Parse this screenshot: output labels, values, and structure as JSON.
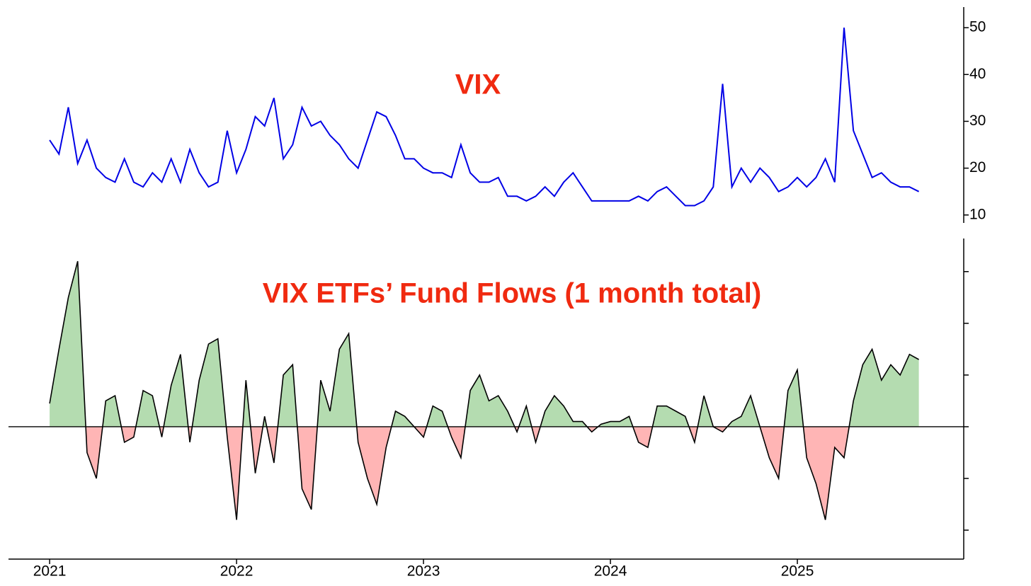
{
  "chart_data": [
    {
      "type": "line",
      "title": "VIX",
      "x": [
        2021.0,
        2021.05,
        2021.1,
        2021.15,
        2021.2,
        2021.25,
        2021.3,
        2021.35,
        2021.4,
        2021.45,
        2021.5,
        2021.55,
        2021.6,
        2021.65,
        2021.7,
        2021.75,
        2021.8,
        2021.85,
        2021.9,
        2021.95,
        2022.0,
        2022.05,
        2022.1,
        2022.15,
        2022.2,
        2022.25,
        2022.3,
        2022.35,
        2022.4,
        2022.45,
        2022.5,
        2022.55,
        2022.6,
        2022.65,
        2022.7,
        2022.75,
        2022.8,
        2022.85,
        2022.9,
        2022.95,
        2023.0,
        2023.05,
        2023.1,
        2023.15,
        2023.2,
        2023.25,
        2023.3,
        2023.35,
        2023.4,
        2023.45,
        2023.5,
        2023.55,
        2023.6,
        2023.65,
        2023.7,
        2023.75,
        2023.8,
        2023.85,
        2023.9,
        2023.95,
        2024.0,
        2024.05,
        2024.1,
        2024.15,
        2024.2,
        2024.25,
        2024.3,
        2024.35,
        2024.4,
        2024.45,
        2024.5,
        2024.55,
        2024.6,
        2024.65,
        2024.7,
        2024.75,
        2024.8,
        2024.85,
        2024.9,
        2024.95,
        2025.0,
        2025.05,
        2025.1,
        2025.15,
        2025.2,
        2025.25,
        2025.3,
        2025.35,
        2025.4,
        2025.45,
        2025.5,
        2025.55,
        2025.6,
        2025.65
      ],
      "series": [
        {
          "color": "#0000e6",
          "values": [
            26,
            23,
            33,
            21,
            26,
            20,
            18,
            17,
            22,
            17,
            16,
            19,
            17,
            22,
            17,
            24,
            19,
            16,
            17,
            28,
            19,
            24,
            31,
            29,
            35,
            22,
            25,
            33,
            29,
            30,
            27,
            25,
            22,
            20,
            26,
            32,
            31,
            27,
            22,
            22,
            20,
            19,
            19,
            18,
            25,
            19,
            17,
            17,
            18,
            14,
            14,
            13,
            14,
            16,
            14,
            17,
            19,
            16,
            13,
            13,
            13,
            13,
            13,
            14,
            13,
            15,
            16,
            14,
            12,
            12,
            13,
            16,
            38,
            16,
            20,
            17,
            20,
            18,
            15,
            16,
            18,
            16,
            18,
            22,
            17,
            50,
            28,
            23,
            18,
            19,
            17,
            16,
            16,
            15
          ]
        }
      ],
      "xlim": [
        2020.78,
        2025.89
      ],
      "ylim": [
        8.3,
        54.4
      ],
      "yticks": [
        10,
        20,
        30,
        40,
        50
      ]
    },
    {
      "type": "area",
      "title": "VIX ETFs’ Fund Flows (1 month total)",
      "x": [
        2021.0,
        2021.05,
        2021.1,
        2021.15,
        2021.2,
        2021.25,
        2021.3,
        2021.35,
        2021.4,
        2021.45,
        2021.5,
        2021.55,
        2021.6,
        2021.65,
        2021.7,
        2021.75,
        2021.8,
        2021.85,
        2021.9,
        2021.95,
        2022.0,
        2022.05,
        2022.1,
        2022.15,
        2022.2,
        2022.25,
        2022.3,
        2022.35,
        2022.4,
        2022.45,
        2022.5,
        2022.55,
        2022.6,
        2022.65,
        2022.7,
        2022.75,
        2022.8,
        2022.85,
        2022.9,
        2022.95,
        2023.0,
        2023.05,
        2023.1,
        2023.15,
        2023.2,
        2023.25,
        2023.3,
        2023.35,
        2023.4,
        2023.45,
        2023.5,
        2023.55,
        2023.6,
        2023.65,
        2023.7,
        2023.75,
        2023.8,
        2023.85,
        2023.9,
        2023.95,
        2024.0,
        2024.05,
        2024.1,
        2024.15,
        2024.2,
        2024.25,
        2024.3,
        2024.35,
        2024.4,
        2024.45,
        2024.5,
        2024.55,
        2024.6,
        2024.65,
        2024.7,
        2024.75,
        2024.8,
        2024.85,
        2024.9,
        2024.95,
        2025.0,
        2025.05,
        2025.1,
        2025.15,
        2025.2,
        2025.25,
        2025.3,
        2025.35,
        2025.4,
        2025.45,
        2025.5,
        2025.55,
        2025.6,
        2025.65
      ],
      "series": [
        {
          "color": "#000000",
          "values": [
            0.45,
            1.5,
            2.5,
            3.2,
            -0.5,
            -1.0,
            0.5,
            0.6,
            -0.3,
            -0.2,
            0.7,
            0.6,
            -0.2,
            0.8,
            1.4,
            -0.3,
            0.9,
            1.6,
            1.7,
            -0.2,
            -1.8,
            0.9,
            -0.9,
            0.2,
            -0.7,
            1.0,
            1.2,
            -1.2,
            -1.6,
            0.9,
            0.3,
            1.5,
            1.8,
            -0.3,
            -1.0,
            -1.5,
            -0.4,
            0.3,
            0.2,
            0.0,
            -0.2,
            0.4,
            0.3,
            -0.2,
            -0.6,
            0.7,
            1.0,
            0.5,
            0.6,
            0.3,
            -0.1,
            0.4,
            -0.3,
            0.3,
            0.6,
            0.4,
            0.1,
            0.1,
            -0.1,
            0.05,
            0.1,
            0.1,
            0.2,
            -0.3,
            -0.4,
            0.4,
            0.4,
            0.3,
            0.2,
            -0.3,
            0.6,
            0.0,
            -0.1,
            0.1,
            0.2,
            0.6,
            0.0,
            -0.6,
            -1.0,
            0.7,
            1.1,
            -0.6,
            -1.1,
            -1.8,
            -0.4,
            -0.6,
            0.5,
            1.2,
            1.5,
            0.9,
            1.2,
            1.0,
            1.4,
            1.3
          ]
        }
      ],
      "positive_color": "#b4dcb0",
      "negative_color": "#ffb5b5",
      "xlim": [
        2020.78,
        2025.89
      ],
      "ylim": [
        -2.56,
        3.64
      ],
      "xticks": [
        2021,
        2022,
        2023,
        2024,
        2025
      ],
      "yticks": [
        -2,
        -1,
        0,
        1,
        2,
        3
      ]
    }
  ]
}
